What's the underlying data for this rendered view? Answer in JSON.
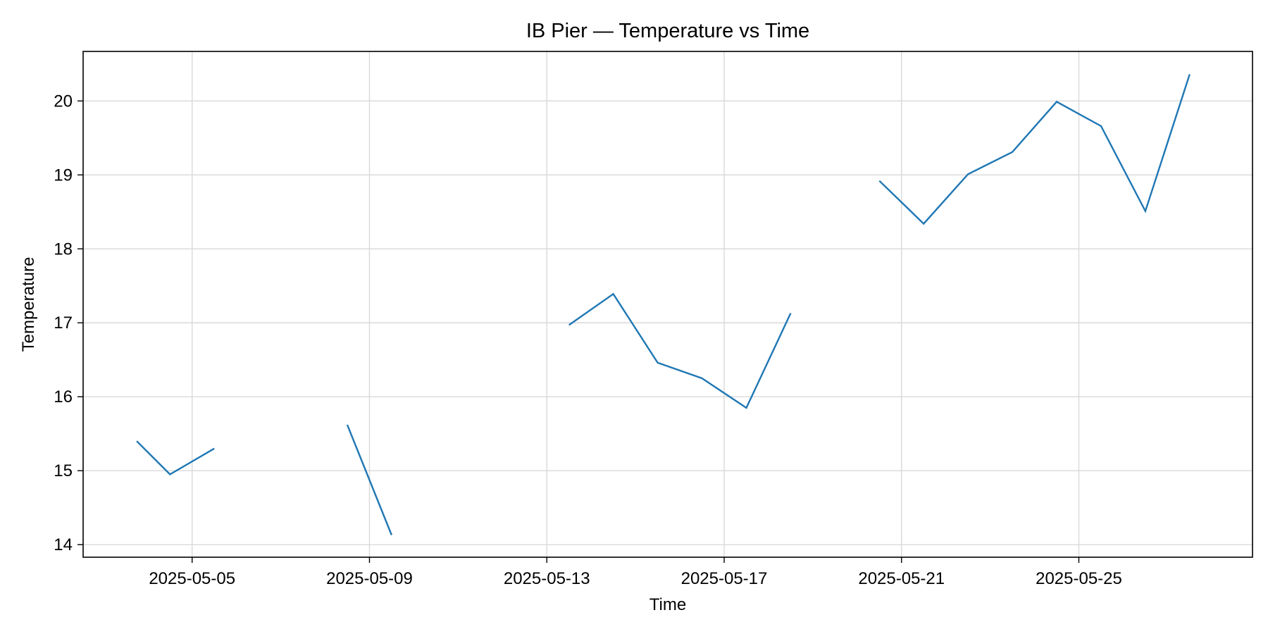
{
  "chart_data": {
    "type": "line",
    "title": "IB Pier — Temperature vs Time",
    "xlabel": "Time",
    "ylabel": "Temperature",
    "x_ticks": [
      "2025-05-05",
      "2025-05-09",
      "2025-05-13",
      "2025-05-17",
      "2025-05-21",
      "2025-05-25"
    ],
    "y_ticks": [
      "14",
      "15",
      "16",
      "17",
      "18",
      "19",
      "20"
    ],
    "xlim": [
      "2025-05-02 13:00",
      "2025-05-28 22:00"
    ],
    "ylim": [
      13.83,
      20.67
    ],
    "grid": true,
    "legend": "none",
    "colors": {
      "line": "#1f77b4",
      "grid": "#d9d9d9",
      "axes": "#000000"
    },
    "series": [
      {
        "segments": [
          [
            {
              "x": "2025-05-03 18:00",
              "y": 15.4
            },
            {
              "x": "2025-05-04 12:00",
              "y": 14.95
            },
            {
              "x": "2025-05-05 12:00",
              "y": 15.3
            }
          ],
          [
            {
              "x": "2025-05-08 12:00",
              "y": 15.62
            },
            {
              "x": "2025-05-09 12:00",
              "y": 14.13
            }
          ],
          [
            {
              "x": "2025-05-13 12:00",
              "y": 16.97
            },
            {
              "x": "2025-05-14 12:00",
              "y": 17.39
            },
            {
              "x": "2025-05-15 12:00",
              "y": 16.46
            },
            {
              "x": "2025-05-16 12:00",
              "y": 16.25
            },
            {
              "x": "2025-05-17 12:00",
              "y": 15.85
            },
            {
              "x": "2025-05-18 12:00",
              "y": 17.13
            }
          ],
          [
            {
              "x": "2025-05-20 12:00",
              "y": 18.92
            },
            {
              "x": "2025-05-21 12:00",
              "y": 18.34
            },
            {
              "x": "2025-05-22 12:00",
              "y": 19.01
            },
            {
              "x": "2025-05-23 12:00",
              "y": 19.31
            },
            {
              "x": "2025-05-24 12:00",
              "y": 19.99
            },
            {
              "x": "2025-05-25 12:00",
              "y": 19.66
            },
            {
              "x": "2025-05-26 12:00",
              "y": 18.51
            },
            {
              "x": "2025-05-27 12:00",
              "y": 20.36
            }
          ]
        ]
      }
    ]
  }
}
